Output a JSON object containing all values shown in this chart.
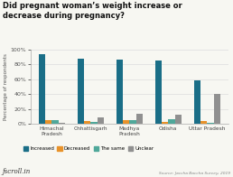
{
  "title": "Did pregnant woman’s weight increase or\ndecrease during pregnancy?",
  "ylabel": "Percentage of respondents",
  "categories": [
    "Himachal\nPradesh",
    "Chhattisgarh",
    "Madhya\nPradesh",
    "Odisha",
    "Uttar Pradesh"
  ],
  "series": {
    "Increased": [
      94,
      88,
      87,
      85,
      59
    ],
    "Decreased": [
      5,
      4,
      5,
      3,
      4
    ],
    "The same": [
      5,
      3,
      5,
      6,
      2
    ],
    "Unclear": [
      2,
      9,
      14,
      12,
      40
    ]
  },
  "colors": {
    "Increased": "#1a6e87",
    "Decreased": "#e8922a",
    "The same": "#4fa89a",
    "Unclear": "#909090"
  },
  "ylim": [
    0,
    100
  ],
  "yticks": [
    0,
    20,
    40,
    60,
    80,
    100
  ],
  "ytick_labels": [
    "0%",
    "20%",
    "40%",
    "60%",
    "80%",
    "100%"
  ],
  "source": "Source: Jaccha Baccha Survey, 2019",
  "logo": "ƒscroll.in",
  "background_color": "#f7f7f2"
}
